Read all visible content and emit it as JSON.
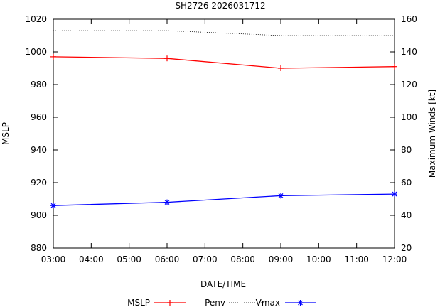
{
  "chart_data": {
    "type": "line",
    "title": "SH2726 2026031712",
    "xlabel": "DATE/TIME",
    "ylabel_left": "MSLP",
    "ylabel_right": "Maximum Winds [kt]",
    "x_ticks": [
      "03:00",
      "04:00",
      "05:00",
      "06:00",
      "07:00",
      "08:00",
      "09:00",
      "10:00",
      "11:00",
      "12:00"
    ],
    "x_range_hours": [
      3,
      12
    ],
    "y_left_range": [
      880,
      1020
    ],
    "y_left_ticks": [
      880,
      900,
      920,
      940,
      960,
      980,
      1000,
      1020
    ],
    "y_right_range": [
      20,
      160
    ],
    "y_right_ticks": [
      20,
      40,
      60,
      80,
      100,
      120,
      140,
      160
    ],
    "series": [
      {
        "name": "MSLP",
        "axis": "left",
        "color": "#ff0000",
        "marker": "plus",
        "line": "solid",
        "x": [
          3,
          6,
          9,
          12
        ],
        "values": [
          997,
          996,
          990,
          991
        ]
      },
      {
        "name": "Penv",
        "axis": "left",
        "color": "#000000",
        "marker": "none",
        "line": "dotted",
        "x": [
          3,
          6,
          9,
          12
        ],
        "values": [
          1013,
          1013,
          1010,
          1010
        ]
      },
      {
        "name": "Vmax",
        "axis": "right",
        "color": "#0000ff",
        "marker": "star",
        "line": "solid",
        "x": [
          3,
          6,
          9,
          12
        ],
        "values": [
          46,
          48,
          52,
          53
        ]
      }
    ],
    "legend_position": "bottom-center",
    "grid": false
  }
}
